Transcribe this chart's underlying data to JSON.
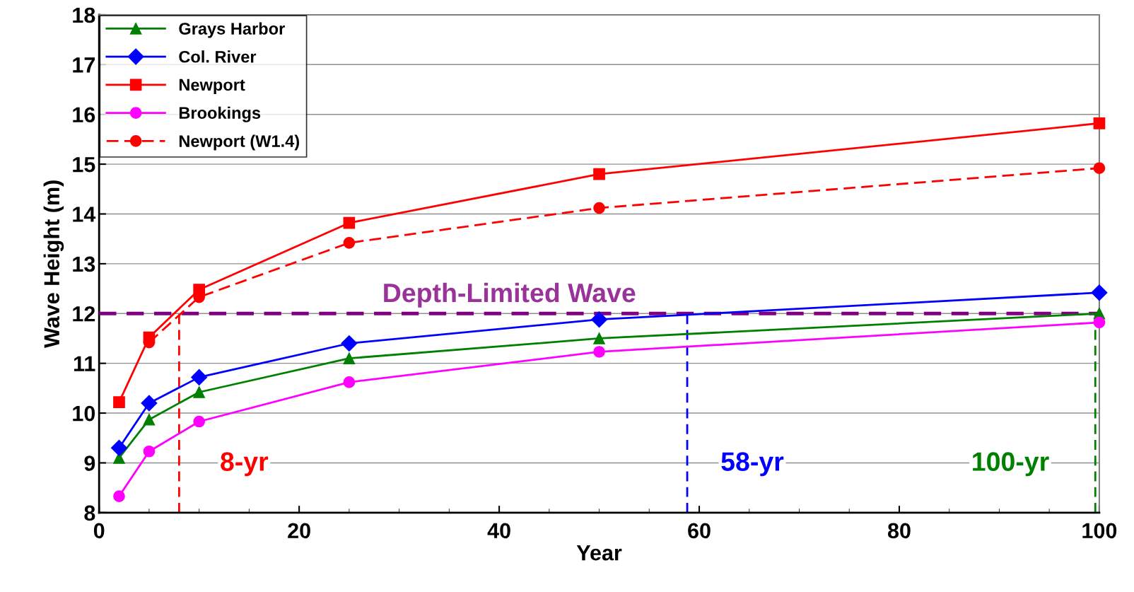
{
  "chart_data": {
    "type": "line",
    "xlabel": "Year",
    "ylabel": "Wave Height (m)",
    "x": [
      2,
      5,
      10,
      25,
      50,
      100
    ],
    "xlim": [
      0,
      100
    ],
    "xticks": [
      0,
      20,
      40,
      60,
      80,
      100
    ],
    "ylim": [
      8,
      18
    ],
    "yticks": [
      8,
      9,
      10,
      11,
      12,
      13,
      14,
      15,
      16,
      17,
      18
    ],
    "grid": "y",
    "legend": "top left",
    "series": [
      {
        "name": "Grays Harbor",
        "color": "#008000",
        "marker": "triangle",
        "line_style": "solid",
        "values": [
          9.1,
          9.87,
          10.42,
          11.1,
          11.5,
          12.0
        ]
      },
      {
        "name": "Col. River",
        "color": "#0000ff",
        "marker": "diamond",
        "line_style": "solid",
        "values": [
          9.3,
          10.2,
          10.72,
          11.4,
          11.88,
          12.42
        ]
      },
      {
        "name": "Newport",
        "color": "#ff0000",
        "marker": "square",
        "line_style": "solid",
        "values": [
          10.22,
          11.52,
          12.48,
          13.82,
          14.8,
          15.82
        ]
      },
      {
        "name": "Brookings",
        "color": "#ff00ff",
        "marker": "circle",
        "line_style": "solid",
        "values": [
          8.33,
          9.23,
          9.83,
          10.62,
          11.23,
          11.82
        ]
      },
      {
        "name": "Newport (W1.4)",
        "color": "#ff0000",
        "marker": "circle",
        "line_style": "dashed",
        "x": [
          5,
          10,
          25,
          50,
          100
        ],
        "values": [
          11.42,
          12.33,
          13.42,
          14.12,
          14.92
        ]
      }
    ],
    "ref_lines": [
      {
        "axis": "y",
        "value": 12,
        "label": "Depth-Limited Wave",
        "color": "#800080",
        "line_style": "dashed"
      },
      {
        "axis": "x",
        "value": 8,
        "label": "8-yr",
        "color": "#ff0000",
        "line_style": "dashed"
      },
      {
        "axis": "x",
        "value": 58.8,
        "label": "58-yr",
        "color": "#0000ff",
        "line_style": "dashed"
      },
      {
        "axis": "x",
        "value": 99.6,
        "label": "100-yr",
        "color": "#008000",
        "line_style": "dashed"
      }
    ]
  }
}
